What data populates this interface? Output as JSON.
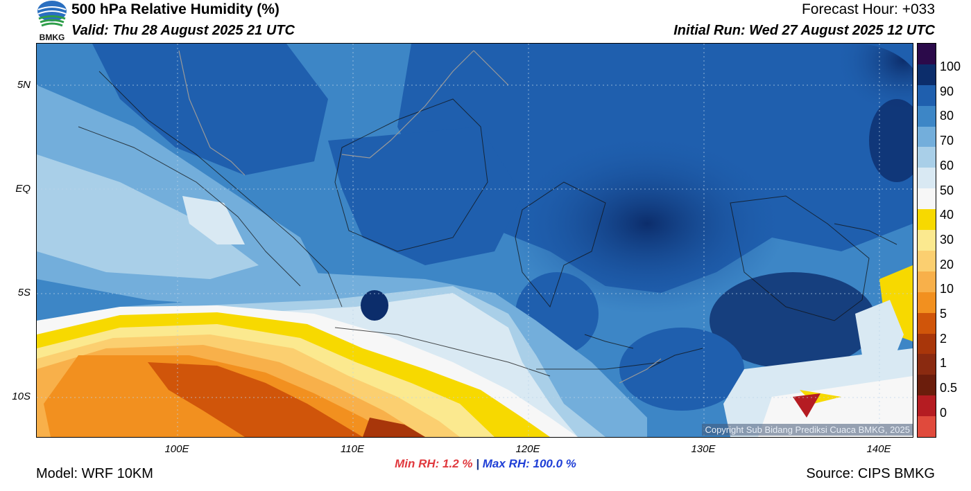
{
  "header": {
    "title": "500 hPa Relative Humidity (%)",
    "valid": "Valid: Thu 28 August 2025 21 UTC",
    "forecast_hour": "Forecast Hour: +033",
    "initial_run": "Initial Run: Wed 27 August 2025 12 UTC",
    "logo_text": "BMKG"
  },
  "map": {
    "lat_labels": [
      "5N",
      "EQ",
      "5S",
      "10S"
    ],
    "lon_labels": [
      "100E",
      "110E",
      "120E",
      "130E",
      "140E"
    ],
    "copyright": "Copyright Sub Bidang Prediksi Cuaca BMKG, 2025",
    "lat_range": [
      -12,
      7
    ],
    "lon_range": [
      92,
      142
    ]
  },
  "stats": {
    "min_label": "Min RH:",
    "min_value": "1.2 %",
    "separator": "|",
    "max_label": "Max RH:",
    "max_value": "100.0 %"
  },
  "footer": {
    "model": "Model: WRF 10KM",
    "source": "Source: CIPS BMKG"
  },
  "colorbar": {
    "labels": [
      "100",
      "90",
      "80",
      "70",
      "60",
      "50",
      "40",
      "30",
      "20",
      "10",
      "5",
      "2",
      "1",
      "0.5",
      "0"
    ],
    "colors": [
      "#2b0a4a",
      "#0c2d6b",
      "#1f5fae",
      "#3d86c6",
      "#73aedb",
      "#a9cfe8",
      "#d9e9f3",
      "#f7f7f7",
      "#f7d900",
      "#fbe98f",
      "#fbcf70",
      "#f8b04a",
      "#f2901f",
      "#d0550a",
      "#a8360a",
      "#8a2a10",
      "#6b1d0c",
      "#b51c22",
      "#e04a3c"
    ]
  }
}
